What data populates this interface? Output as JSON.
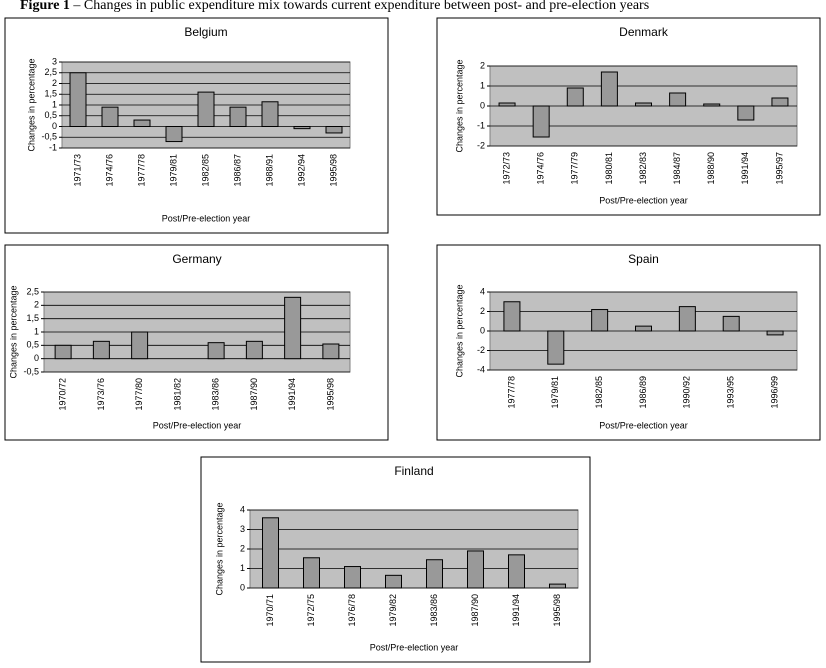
{
  "figure_title": {
    "label": "Figure 1",
    "text": "– Changes in public expenditure mix towards current expenditure between post- and pre-election years"
  },
  "chart_data": [
    {
      "type": "bar",
      "title": "Belgium",
      "x_label": "Post/Pre-election year",
      "y_label": "Changes in percentage",
      "color": "#999999",
      "grid": true,
      "categories": [
        "1971/73",
        "1974/76",
        "1977/78",
        "1979/81",
        "1982/85",
        "1986/87",
        "1988/91",
        "1992/94",
        "1995/98"
      ],
      "values": [
        2.5,
        0.9,
        0.3,
        -0.7,
        1.6,
        0.9,
        1.15,
        -0.1,
        -0.3
      ],
      "ylim": [
        -1,
        3
      ],
      "yticks": [
        -1,
        {
          "value": -0.5,
          "label": "-0,5"
        },
        0,
        {
          "value": 0.5,
          "label": "0,5"
        },
        1,
        {
          "value": 1.5,
          "label": "1,5"
        },
        2,
        {
          "value": 2.5,
          "label": "2,5"
        },
        3
      ]
    },
    {
      "type": "bar",
      "title": "Denmark",
      "x_label": "Post/Pre-election year",
      "y_label": "Changes in percentage",
      "color": "#999999",
      "grid": true,
      "categories": [
        "1972/73",
        "1974/76",
        "1977/79",
        "1980/81",
        "1982/83",
        "1984/87",
        "1988/90",
        "1991/94",
        "1995/97"
      ],
      "values": [
        0.15,
        -1.55,
        0.9,
        1.7,
        0.15,
        0.65,
        0.1,
        -0.7,
        0.4
      ],
      "ylim": [
        -2,
        2
      ],
      "yticks": [
        -2,
        -1,
        0,
        1,
        2
      ]
    },
    {
      "type": "bar",
      "title": "Germany",
      "x_label": "Post/Pre-election year",
      "y_label": "Changes in percentage",
      "color": "#999999",
      "grid": true,
      "categories": [
        "1970/72",
        "1973/76",
        "1977/80",
        "1981/82",
        "1983/86",
        "1987/90",
        "1991/94",
        "1995/98"
      ],
      "values": [
        0.5,
        0.65,
        1.0,
        null,
        0.6,
        0.65,
        2.3,
        0.55
      ],
      "ylim": [
        -0.5,
        2.5
      ],
      "yticks": [
        {
          "value": -0.5,
          "label": "-0,5"
        },
        0,
        {
          "value": 0.5,
          "label": "0,5"
        },
        1,
        {
          "value": 1.5,
          "label": "1,5"
        },
        2,
        {
          "value": 2.5,
          "label": "2,5"
        }
      ]
    },
    {
      "type": "bar",
      "title": "Spain",
      "x_label": "Post/Pre-election year",
      "y_label": "Changes in percentage",
      "color": "#999999",
      "grid": true,
      "categories": [
        "1977/78",
        "1979/81",
        "1982/85",
        "1986/89",
        "1990/92",
        "1993/95",
        "1996/99"
      ],
      "values": [
        3.0,
        -3.4,
        2.2,
        0.5,
        2.5,
        1.5,
        -0.4
      ],
      "ylim": [
        -4,
        4
      ],
      "yticks": [
        -4,
        -2,
        0,
        2,
        4
      ]
    },
    {
      "type": "bar",
      "title": "Finland",
      "x_label": "Post/Pre-election year",
      "y_label": "Changes in percentage",
      "color": "#999999",
      "grid": true,
      "categories": [
        "1970/71",
        "1972/75",
        "1976/78",
        "1979/82",
        "1983/86",
        "1987/90",
        "1991/94",
        "1995/98"
      ],
      "values": [
        3.6,
        1.55,
        1.1,
        0.65,
        1.45,
        1.9,
        1.7,
        0.2
      ],
      "ylim": [
        0,
        4
      ],
      "yticks": [
        0,
        1,
        2,
        3,
        4
      ]
    }
  ]
}
